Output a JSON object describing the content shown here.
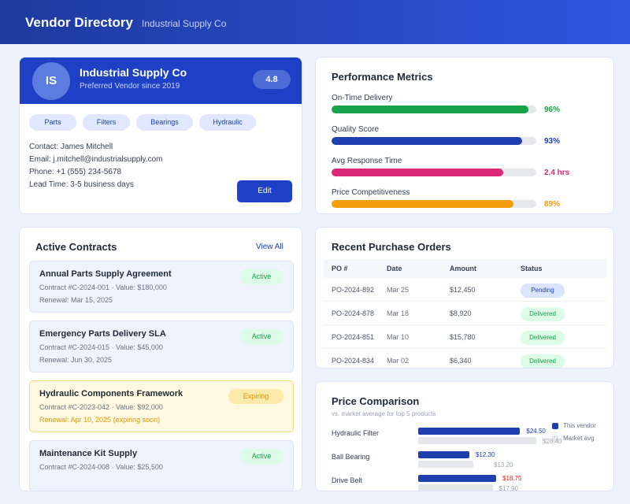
{
  "header": {
    "title": "Vendor Directory",
    "subtitle": "Industrial Supply Co"
  },
  "profile": {
    "initials": "IS",
    "name": "Industrial Supply Co",
    "since": "Preferred Vendor since 2019",
    "rating": "4.8",
    "tags": [
      "Parts",
      "Filters",
      "Bearings",
      "Hydraulic"
    ],
    "details": [
      "Contact: James Mitchell",
      "Email: j.mitchell@industrialsupply.com",
      "Phone: +1 (555) 234-5678",
      "Lead Time: 3-5 business days"
    ],
    "button": "Edit"
  },
  "metrics": {
    "title": "Performance Metrics",
    "items": [
      {
        "label": "On-Time Delivery",
        "bar": 96,
        "text": "96%",
        "color": "#16a34a"
      },
      {
        "label": "Quality Score",
        "bar": 93,
        "text": "93%",
        "color": "#1e40af"
      },
      {
        "label": "Avg Response Time",
        "bar": 84,
        "text": "2.4 hrs",
        "color": "#db2777"
      },
      {
        "label": "Price Competitiveness",
        "bar": 89,
        "text": "89%",
        "color": "#f59e0b"
      }
    ]
  },
  "contracts": {
    "title": "Active Contracts",
    "link": "View All",
    "items": [
      {
        "name": "Annual Parts Supply Agreement",
        "meta": "Contract #C-2024-001 · Value: $180,000",
        "renewal": "Renewal: Mar 15, 2025",
        "status": "Active",
        "warning": false
      },
      {
        "name": "Emergency Parts Delivery SLA",
        "meta": "Contract #C-2024-015 · Value: $45,000",
        "renewal": "Renewal: Jun 30, 2025",
        "status": "Active",
        "warning": false
      },
      {
        "name": "Hydraulic Components Framework",
        "meta": "Contract #C-2023-042 · Value: $92,000",
        "renewal": "Renewal: Apr 10, 2025 (expiring soon)",
        "status": "Expiring",
        "warning": true
      },
      {
        "name": "Maintenance Kit Supply",
        "meta": "Contract #C-2024-008 · Value: $25,500",
        "status": "Active",
        "warning": false
      }
    ]
  },
  "orders": {
    "title": "Recent Purchase Orders",
    "columns": [
      "PO #",
      "Date",
      "Amount",
      "Status"
    ],
    "rows": [
      {
        "cells": [
          "PO-2024-892",
          "Mar 25",
          "$12,450",
          "Pending"
        ],
        "status_color": "blue"
      },
      {
        "cells": [
          "PO-2024-878",
          "Mar 18",
          "$8,920",
          "Delivered"
        ],
        "status_color": "green"
      },
      {
        "cells": [
          "PO-2024-851",
          "Mar 10",
          "$15,780",
          "Delivered"
        ],
        "status_color": "green"
      },
      {
        "cells": [
          "PO-2024-834",
          "Mar 02",
          "$6,340",
          "Delivered"
        ],
        "status_color": "green"
      }
    ]
  },
  "prices": {
    "title": "Price Comparison",
    "subtitle": "vs. market average for top 5 products",
    "legend": [
      {
        "name": "This vendor",
        "color": "#1e40af"
      },
      {
        "name": "Market avg",
        "color": "#e5e7eb"
      }
    ],
    "items": [
      {
        "name": "Hydraulic Filter",
        "vendor": 24.5,
        "vendor_label": "$24.50",
        "market": 28.4,
        "market_label": "$28.40",
        "vendor_label_color": "#1e40af"
      },
      {
        "name": "Ball Bearing",
        "vendor": 12.3,
        "vendor_label": "$12.30",
        "market": 13.2,
        "market_label": "$13.20",
        "vendor_label_color": "#1e40af"
      },
      {
        "name": "Drive Belt",
        "vendor": 18.75,
        "vendor_label": "$18.75",
        "market": 17.9,
        "market_label": "$17.90",
        "vendor_label_color": "#dc2626"
      }
    ]
  }
}
